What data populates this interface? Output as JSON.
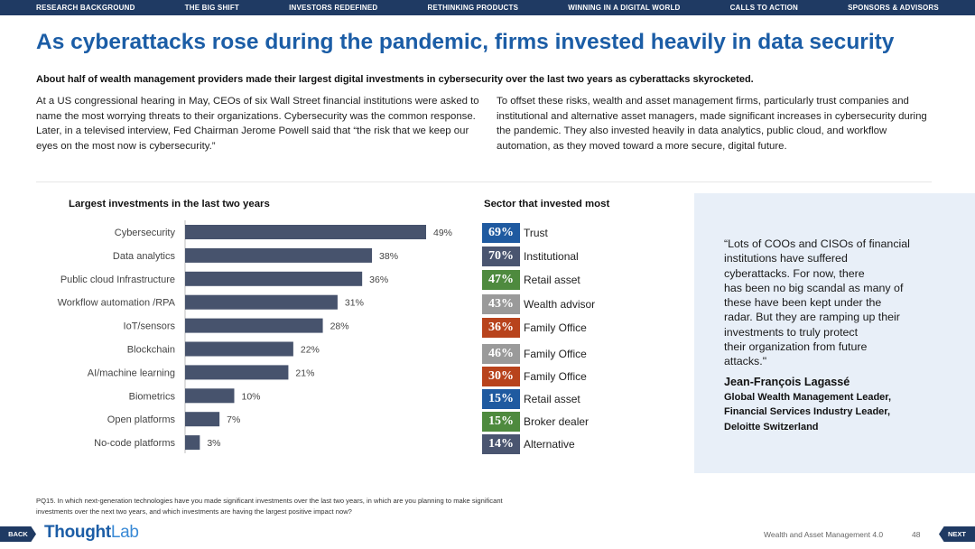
{
  "nav": {
    "items": [
      "RESEARCH BACKGROUND",
      "THE BIG SHIFT",
      "INVESTORS REDEFINED",
      "RETHINKING PRODUCTS",
      "WINNING IN A DIGITAL WORLD",
      "CALLS TO ACTION",
      "SPONSORS & ADVISORS"
    ]
  },
  "page": {
    "title": "As cyberattacks rose during the pandemic, firms invested heavily in data security",
    "subtitle": "About half of wealth management providers made their largest digital investments in cybersecurity over the last two years as cyberattacks skyrocketed.",
    "para_left": "At a US congressional hearing in May, CEOs of six Wall Street financial institutions were asked to name the most worrying threats to their organizations. Cybersecurity was the common response. Later, in a televised interview, Fed Chairman Jerome Powell said that “the risk that we keep our eyes on the most now is cybersecurity.”",
    "para_right": "To offset these risks, wealth and asset management firms, particularly trust companies and institutional and alternative asset managers, made significant increases in cybersecurity during the pandemic. They also invested heavily in data analytics, public cloud, and workflow automation, as they moved toward a more secure, digital future."
  },
  "chart_data": [
    {
      "type": "bar",
      "orientation": "horizontal",
      "title": "Largest investments in the last two years",
      "categories": [
        "Cybersecurity",
        "Data analytics",
        "Public cloud Infrastructure",
        "Workflow automation /RPA",
        "IoT/sensors",
        "Blockchain",
        "AI/machine learning",
        "Biometrics",
        "Open platforms",
        "No-code platforms"
      ],
      "values": [
        49,
        38,
        36,
        31,
        28,
        22,
        21,
        10,
        7,
        3
      ],
      "value_labels": [
        "49%",
        "38%",
        "36%",
        "31%",
        "28%",
        "22%",
        "21%",
        "10%",
        "7%",
        "3%"
      ],
      "unit": "%",
      "xlim": [
        0,
        60
      ],
      "bar_color": "#47536d"
    },
    {
      "type": "table",
      "title": "Sector that invested most",
      "rows": [
        {
          "value": 69,
          "label": "69%",
          "sector": "Trust",
          "color": "#1f5aa0"
        },
        {
          "value": 70,
          "label": "70%",
          "sector": "Institutional",
          "color": "#4a5570"
        },
        {
          "value": 47,
          "label": "47%",
          "sector": "Retail asset",
          "color": "#4e8a3e"
        },
        {
          "value": 43,
          "label": "43%",
          "sector": "Wealth advisor",
          "color": "#9a9a9a"
        },
        {
          "value": 36,
          "label": "36%",
          "sector": "Family Office",
          "color": "#b8431c"
        },
        {
          "value": 46,
          "label": "46%",
          "sector": "Family Office",
          "color": "#9a9a9a"
        },
        {
          "value": 30,
          "label": "30%",
          "sector": "Family Office",
          "color": "#b8431c"
        },
        {
          "value": 15,
          "label": "15%",
          "sector": "Retail asset",
          "color": "#1f5aa0"
        },
        {
          "value": 15,
          "label": "15%",
          "sector": "Broker dealer",
          "color": "#4e8a3e"
        },
        {
          "value": 14,
          "label": "14%",
          "sector": "Alternative",
          "color": "#4a5570"
        }
      ]
    }
  ],
  "quote": {
    "lines": [
      "“Lots of COOs and CISOs of financial",
      "institutions have suffered",
      "cyberattacks. For now, there",
      "has been no big scandal as many of",
      "these have been kept under the",
      "radar. But they are ramping up their",
      "investments to truly protect",
      "their organization from future",
      "attacks.\""
    ],
    "name": "Jean-François Lagassé",
    "role_lines": [
      "Global Wealth Management Leader,",
      "Financial Services Industry Leader,",
      "Deloitte Switzerland"
    ]
  },
  "footnote": "PQ15. In which next-generation technologies have you made significant investments over the last two years, in which are you planning to make significant investments over the next two years, and which investments are having the largest positive impact now?",
  "footer": {
    "back_label": "BACK",
    "next_label": "NEXT",
    "logo_part1": "Thought",
    "logo_part2": "Lab",
    "report_name": "Wealth and Asset Management 4.0",
    "page_number": "48"
  }
}
